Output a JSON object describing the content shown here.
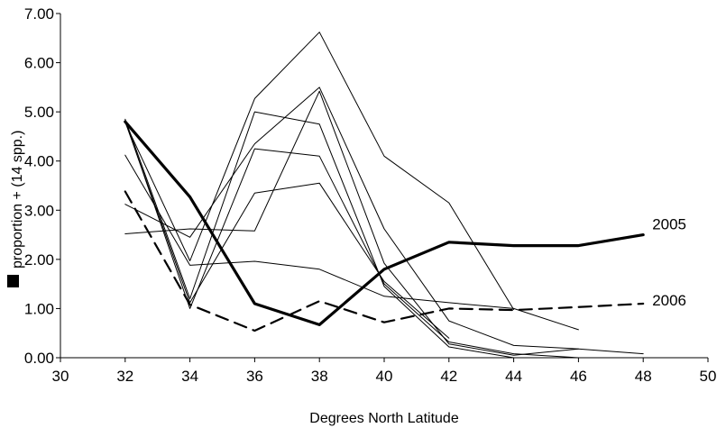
{
  "chart_data": {
    "type": "line",
    "xlabel": "Degrees North Latitude",
    "ylabel": "proportion + (14 spp.)",
    "xlim": [
      30,
      50
    ],
    "ylim": [
      0,
      7
    ],
    "x_ticks": [
      "30",
      "32",
      "34",
      "36",
      "38",
      "40",
      "42",
      "44",
      "46",
      "48",
      "50"
    ],
    "y_ticks": [
      "0.00",
      "1.00",
      "2.00",
      "3.00",
      "4.00",
      "5.00",
      "6.00",
      "7.00"
    ],
    "grid": false,
    "legend": "none",
    "series": [
      {
        "name": "2005",
        "style": "bold",
        "x": [
          32,
          34,
          36,
          38,
          40,
          42,
          44,
          46,
          48
        ],
        "values": [
          4.8,
          3.27,
          1.1,
          0.67,
          1.8,
          2.35,
          2.28,
          2.28,
          2.5
        ]
      },
      {
        "name": "2006",
        "style": "dashed",
        "x": [
          32,
          34,
          36,
          38,
          40,
          42,
          44,
          46,
          48
        ],
        "values": [
          3.38,
          1.08,
          0.55,
          1.15,
          0.72,
          1.0,
          0.97,
          1.03,
          1.1
        ]
      },
      {
        "style": "thin",
        "x": [
          32,
          34,
          36,
          38,
          40,
          42,
          44
        ],
        "values": [
          4.78,
          1.97,
          5.27,
          6.62,
          4.1,
          3.15,
          0.98
        ]
      },
      {
        "style": "thin",
        "x": [
          32,
          34,
          36,
          38,
          40,
          42,
          44,
          46
        ],
        "values": [
          4.12,
          1.88,
          1.96,
          1.8,
          1.25,
          1.12,
          1.0,
          0.57
        ]
      },
      {
        "style": "thin",
        "x": [
          32,
          34,
          36,
          38,
          40,
          42,
          44,
          46,
          48
        ],
        "values": [
          3.12,
          2.45,
          4.35,
          5.5,
          2.62,
          0.75,
          0.25,
          0.18,
          0.08
        ]
      },
      {
        "style": "thin",
        "x": [
          32,
          34,
          36,
          38,
          40,
          42,
          44,
          46
        ],
        "values": [
          2.52,
          2.62,
          2.58,
          5.42,
          1.92,
          0.28,
          0.05,
          0.18
        ]
      },
      {
        "style": "thin",
        "x": [
          32,
          34,
          36,
          38,
          40,
          42,
          44,
          46
        ],
        "values": [
          4.85,
          1.2,
          5.0,
          4.75,
          1.45,
          0.22,
          0.0,
          0.0
        ]
      },
      {
        "style": "thin",
        "x": [
          32,
          34,
          36,
          38,
          40,
          42,
          44,
          46
        ],
        "values": [
          4.82,
          1.0,
          4.25,
          4.1,
          1.5,
          0.32,
          0.08,
          0.0
        ]
      },
      {
        "style": "thin",
        "x": [
          32,
          34,
          36,
          38,
          40,
          42
        ],
        "values": [
          4.8,
          1.12,
          3.35,
          3.55,
          1.55,
          0.4
        ]
      }
    ]
  }
}
